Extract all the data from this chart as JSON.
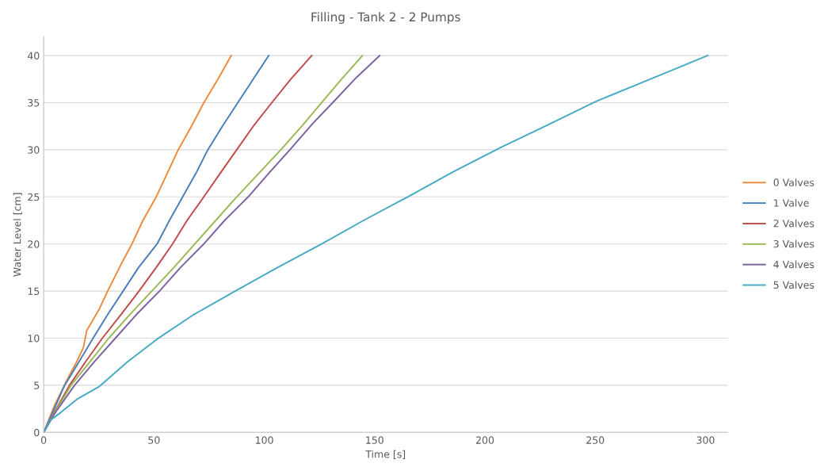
{
  "chart_data": {
    "type": "line",
    "title": "Filling - Tank 2 - 2 Pumps",
    "xlabel": "Time [s]",
    "ylabel": "Water Level [cm]",
    "xlim": [
      0,
      310
    ],
    "xticks": [
      0,
      50,
      100,
      150,
      200,
      250,
      300
    ],
    "ylim": [
      0,
      42
    ],
    "yticks": [
      0,
      5,
      10,
      15,
      20,
      25,
      30,
      35,
      40
    ],
    "grid": "y",
    "legend": "right",
    "marker": "none",
    "line_style": "solid",
    "series": [
      {
        "name": "0 Valves",
        "color": "#f0883a",
        "x": [
          0,
          5,
          10,
          15,
          18,
          19.5,
          25,
          29,
          35,
          40,
          45,
          51,
          56,
          61,
          67,
          72.6,
          79,
          85
        ],
        "values": [
          0,
          2.9,
          5.3,
          7.5,
          9,
          10.8,
          13,
          15,
          17.8,
          20,
          22.5,
          25,
          27.5,
          30,
          32.5,
          35,
          37.5,
          40
        ]
      },
      {
        "name": "1 Valve",
        "color": "#4a7ebb",
        "x": [
          0,
          5,
          9.5,
          15,
          22.4,
          29,
          36,
          43,
          51.4,
          57,
          63,
          69,
          74.4,
          81,
          88,
          95,
          102
        ],
        "values": [
          0,
          2.6,
          5,
          7.1,
          10,
          12.5,
          15,
          17.5,
          20,
          22.5,
          25,
          27.5,
          30,
          32.5,
          35,
          37.5,
          40
        ]
      },
      {
        "name": "2 Valves",
        "color": "#be4b48",
        "x": [
          0,
          5,
          11.7,
          19,
          26.6,
          35,
          43.2,
          51,
          58.4,
          65,
          72.6,
          80,
          87.5,
          95,
          103.4,
          112,
          121.5
        ],
        "values": [
          0,
          2.2,
          5,
          7.5,
          10,
          12.5,
          15,
          17.5,
          20,
          22.5,
          25,
          27.5,
          30,
          32.5,
          35,
          37.5,
          40
        ]
      },
      {
        "name": "3 Valves",
        "color": "#98b954",
        "x": [
          0,
          5,
          12.4,
          21,
          29.5,
          39,
          49,
          59,
          68.5,
          78,
          87.5,
          97.5,
          107.5,
          117,
          126,
          135,
          144.5
        ],
        "values": [
          0,
          2.1,
          5,
          7.5,
          10,
          12.5,
          15,
          17.5,
          20,
          22.5,
          25,
          27.5,
          30,
          32.5,
          35,
          37.5,
          40
        ]
      },
      {
        "name": "4 Valves",
        "color": "#7d60a0",
        "x": [
          0,
          5,
          14,
          23,
          32.5,
          42,
          52.5,
          62,
          72.6,
          82,
          92.7,
          102,
          111.6,
          122,
          131,
          141,
          152.3
        ],
        "values": [
          0,
          2,
          5,
          7.5,
          10,
          12.5,
          15,
          17.5,
          20,
          22.5,
          25,
          27.5,
          30,
          32.8,
          35,
          37.5,
          40
        ]
      },
      {
        "name": "5 Valves",
        "color": "#46aac5",
        "x": [
          0,
          3,
          7.7,
          15,
          25.4,
          38,
          51.4,
          68,
          86.8,
          106,
          126,
          145,
          165,
          186,
          207.6,
          229,
          250,
          276,
          301
        ],
        "values": [
          0,
          1.3,
          2.1,
          3.5,
          4.9,
          7.5,
          9.9,
          12.5,
          15,
          17.5,
          20,
          22.5,
          25,
          27.7,
          30.3,
          32.7,
          35.1,
          37.6,
          40
        ]
      }
    ]
  }
}
